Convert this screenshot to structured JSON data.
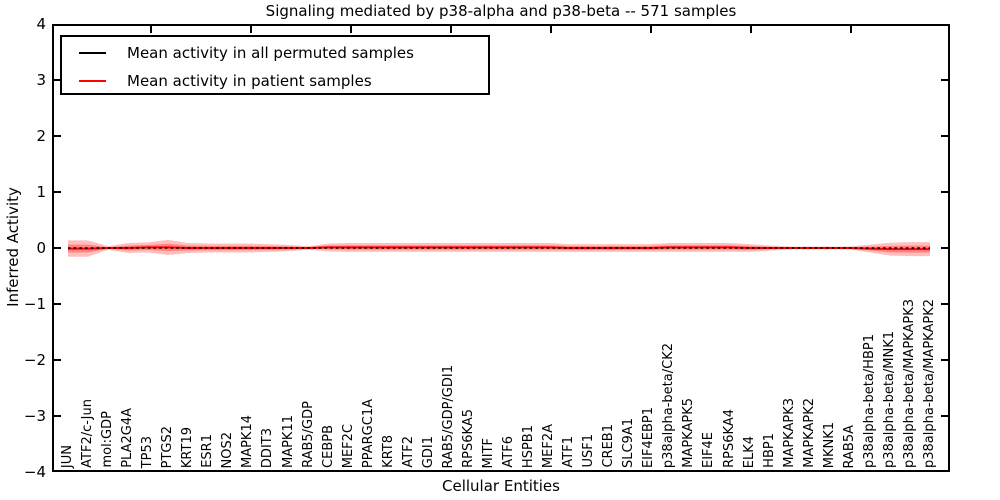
{
  "chart_data": {
    "type": "line",
    "title": "Signaling mediated by p38-alpha and p38-beta -- 571 samples",
    "xlabel": "Cellular Entities",
    "ylabel": "Inferred Activity",
    "ylim": [
      -4,
      4
    ],
    "yticks": [
      "4",
      "3",
      "2",
      "1",
      "0",
      "−1",
      "−2",
      "−3",
      "−4"
    ],
    "grid": false,
    "legend_position": "upper left",
    "legend": [
      {
        "label": "Mean activity in all permuted samples",
        "color": "#000000"
      },
      {
        "label": "Mean activity in patient samples",
        "color": "#ff0000"
      }
    ],
    "categories": [
      "JUN",
      "ATF2/c-Jun",
      "mol:GDP",
      "PLA2G4A",
      "TP53",
      "PTGS2",
      "KRT19",
      "ESR1",
      "NOS2",
      "MAPK14",
      "DDIT3",
      "MAPK11",
      "RAB5/GDP",
      "CEBPB",
      "MEF2C",
      "PPARGC1A",
      "KRT8",
      "ATF2",
      "GDI1",
      "RAB5/GDP/GDI1",
      "RPS6KA5",
      "MITF",
      "ATF6",
      "HSPB1",
      "MEF2A",
      "ATF1",
      "USF1",
      "CREB1",
      "SLC9A1",
      "EIF4EBP1",
      "p38alpha-beta/CK2",
      "MAPKAPK5",
      "EIF4E",
      "RPS6KA4",
      "ELK4",
      "HBP1",
      "MAPKAPK3",
      "MAPKAPK2",
      "MKNK1",
      "RAB5A",
      "p38alpha-beta/HBP1",
      "p38alpha-beta/MNK1",
      "p38alpha-beta/MAPKAPK3",
      "p38alpha-beta/MAPKAPK2"
    ],
    "series": [
      {
        "name": "Mean activity in all permuted samples",
        "color": "#000000",
        "style": "dashed",
        "values": [
          0,
          0,
          0,
          0,
          0,
          0,
          0,
          0,
          0,
          0,
          0,
          0,
          0,
          0,
          0,
          0,
          0,
          0,
          0,
          0,
          0,
          0,
          0,
          0,
          0,
          0,
          0,
          0,
          0,
          0,
          0,
          0,
          0,
          0,
          0,
          0,
          0,
          0,
          0,
          0,
          0,
          0,
          0,
          0
        ]
      },
      {
        "name": "Mean activity in patient samples",
        "color": "#ff0000",
        "style": "solid",
        "values": [
          -0.01,
          -0.01,
          0,
          0,
          0.01,
          0.01,
          0,
          0,
          0,
          0,
          0,
          0,
          0,
          0.01,
          0.01,
          0.01,
          0.01,
          0.01,
          0.01,
          0.01,
          0.01,
          0.01,
          0.01,
          0.01,
          0.01,
          0,
          0,
          0,
          0,
          0,
          0.01,
          0.01,
          0.01,
          0.01,
          0,
          0,
          0,
          0,
          0,
          0,
          -0.01,
          -0.02,
          -0.02,
          -0.02
        ]
      }
    ],
    "bands": [
      {
        "name": "outer-confidence-band",
        "color": "#ff0000",
        "opacity": 0.25,
        "halfwidths": [
          0.145,
          0.145,
          0.03,
          0.09,
          0.09,
          0.135,
          0.09,
          0.08,
          0.08,
          0.08,
          0.07,
          0.055,
          0.03,
          0.07,
          0.08,
          0.08,
          0.08,
          0.08,
          0.08,
          0.08,
          0.08,
          0.08,
          0.08,
          0.08,
          0.08,
          0.07,
          0.07,
          0.07,
          0.07,
          0.07,
          0.08,
          0.08,
          0.08,
          0.08,
          0.07,
          0.045,
          0.027,
          0.027,
          0.027,
          0.027,
          0.07,
          0.115,
          0.125,
          0.125
        ]
      },
      {
        "name": "inner-confidence-band",
        "color": "#ff0000",
        "opacity": 0.3,
        "halfwidths": [
          0.07,
          0.07,
          0.015,
          0.045,
          0.045,
          0.065,
          0.045,
          0.04,
          0.04,
          0.04,
          0.035,
          0.028,
          0.015,
          0.035,
          0.04,
          0.04,
          0.04,
          0.04,
          0.04,
          0.04,
          0.04,
          0.04,
          0.04,
          0.04,
          0.04,
          0.035,
          0.035,
          0.035,
          0.035,
          0.035,
          0.04,
          0.04,
          0.04,
          0.04,
          0.035,
          0.022,
          0.014,
          0.014,
          0.014,
          0.014,
          0.035,
          0.058,
          0.062,
          0.062
        ]
      }
    ]
  }
}
